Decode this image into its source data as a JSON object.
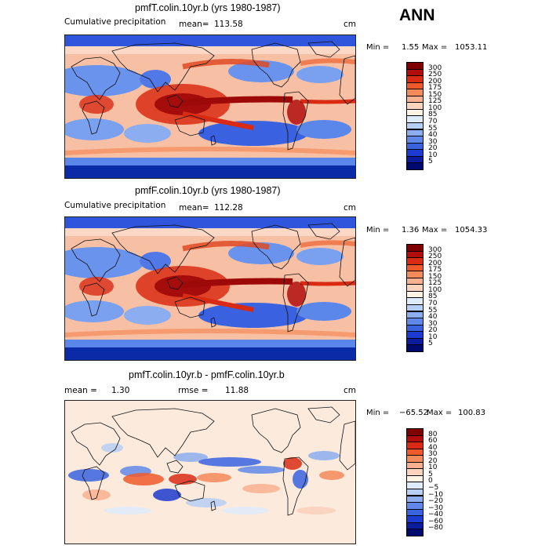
{
  "season": "ANN",
  "panels": [
    {
      "title": "pmfT.colin.10yr.b (yrs 1980-1987)",
      "subtitle": "Cumulative precipitation",
      "mean_label": "mean=",
      "mean_value": "113.58",
      "units": "cm",
      "min_label": "Min =",
      "min_value": "1.55",
      "max_label": "Max =",
      "max_value": "1053.11",
      "scheme": "precip"
    },
    {
      "title": "pmfF.colin.10yr.b (yrs 1980-1987)",
      "subtitle": "Cumulative precipitation",
      "mean_label": "mean=",
      "mean_value": "112.28",
      "units": "cm",
      "min_label": "Min =",
      "min_value": "1.36",
      "max_label": "Max =",
      "max_value": "1054.33",
      "scheme": "precip"
    },
    {
      "title": "pmfT.colin.10yr.b - pmfF.colin.10yr.b",
      "mean_label": "mean =",
      "mean_value": "1.30",
      "rmse_label": "rmse =",
      "rmse_value": "11.88",
      "units": "cm",
      "min_label": "Min =",
      "min_value": "−65.52",
      "max_label": "Max =",
      "max_value": "100.83",
      "scheme": "diff"
    }
  ],
  "colorbars": {
    "precip": {
      "levels": [
        "300",
        "250",
        "200",
        "175",
        "150",
        "125",
        "100",
        "85",
        "70",
        "55",
        "40",
        "30",
        "20",
        "10",
        "5"
      ],
      "colors": [
        "#7f0000",
        "#b20d0d",
        "#d92b14",
        "#ee5a2c",
        "#f58a5a",
        "#f9b08e",
        "#fcd3bd",
        "#fff3e3",
        "#ddebfa",
        "#b7cff4",
        "#8caef0",
        "#6088e8",
        "#3a63e0",
        "#1c3bd0",
        "#0b1d9c",
        "#000a6e"
      ]
    },
    "diff": {
      "levels": [
        "80",
        "60",
        "40",
        "30",
        "20",
        "10",
        "5",
        "0",
        "−5",
        "−10",
        "−20",
        "−30",
        "−40",
        "−60",
        "−80"
      ],
      "colors": [
        "#7f0000",
        "#b20d0d",
        "#d92b14",
        "#ee5a2c",
        "#f58a5a",
        "#f9b08e",
        "#fcd3bd",
        "#fff3e3",
        "#ddebfa",
        "#b7cff4",
        "#8caef0",
        "#6088e8",
        "#3a63e0",
        "#1c3bd0",
        "#0b1d9c",
        "#000a6e"
      ]
    }
  },
  "chart_data": [
    {
      "type": "heatmap",
      "title": "pmfT.colin.10yr.b (yrs 1980-1987)",
      "variable": "Cumulative precipitation",
      "units": "cm",
      "mean": 113.58,
      "min": 1.55,
      "max": 1053.11,
      "contour_levels": [
        5,
        10,
        20,
        30,
        40,
        55,
        70,
        85,
        100,
        125,
        150,
        175,
        200,
        250,
        300
      ]
    },
    {
      "type": "heatmap",
      "title": "pmfF.colin.10yr.b (yrs 1980-1987)",
      "variable": "Cumulative precipitation",
      "units": "cm",
      "mean": 112.28,
      "min": 1.36,
      "max": 1054.33,
      "contour_levels": [
        5,
        10,
        20,
        30,
        40,
        55,
        70,
        85,
        100,
        125,
        150,
        175,
        200,
        250,
        300
      ]
    },
    {
      "type": "heatmap",
      "title": "pmfT.colin.10yr.b - pmfF.colin.10yr.b",
      "units": "cm",
      "mean": 1.3,
      "rmse": 11.88,
      "min": -65.52,
      "max": 100.83,
      "contour_levels": [
        -80,
        -60,
        -40,
        -30,
        -20,
        -10,
        -5,
        0,
        5,
        10,
        20,
        30,
        40,
        60,
        80
      ]
    }
  ]
}
